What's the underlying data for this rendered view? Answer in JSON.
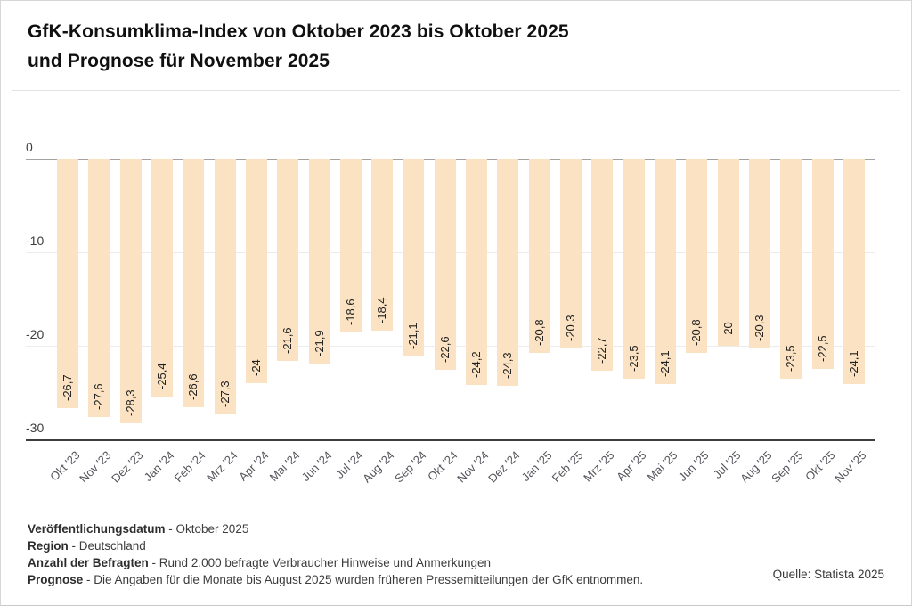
{
  "header": {
    "title_line1": "GfK-Konsumklima-Index von Oktober 2023 bis Oktober 2025",
    "title_line2": "und Prognose für November 2025"
  },
  "chart_data": {
    "type": "bar",
    "title": "GfK-Konsumklima-Index von Oktober 2023 bis Oktober 2025 und Prognose für November 2025",
    "categories": [
      "Okt '23",
      "Nov '23",
      "Dez '23",
      "Jan '24",
      "Feb '24",
      "Mrz '24",
      "Apr '24",
      "Mai '24",
      "Jun '24",
      "Jul '24",
      "Aug '24",
      "Sep '24",
      "Okt '24",
      "Nov '24",
      "Dez '24",
      "Jan '25",
      "Feb '25",
      "Mrz '25",
      "Apr '25",
      "Mai '25",
      "Jun '25",
      "Jul '25",
      "Aug '25",
      "Sep '25",
      "Okt '25",
      "Nov '25"
    ],
    "values": [
      -26.7,
      -27.6,
      -28.3,
      -25.4,
      -26.6,
      -27.3,
      -24,
      -21.6,
      -21.9,
      -18.6,
      -18.4,
      -21.1,
      -22.6,
      -24.2,
      -24.3,
      -20.8,
      -20.3,
      -22.7,
      -23.5,
      -24.1,
      -20.8,
      -20,
      -20.3,
      -23.5,
      -22.5,
      -24.1
    ],
    "value_labels": [
      "-26,7",
      "-27,6",
      "-28,3",
      "-25,4",
      "-26,6",
      "-27,3",
      "-24",
      "-21,6",
      "-21,9",
      "-18,6",
      "-18,4",
      "-21,1",
      "-22,6",
      "-24,2",
      "-24,3",
      "-20,8",
      "-20,3",
      "-22,7",
      "-23,5",
      "-24,1",
      "-20,8",
      "-20",
      "-20,3",
      "-23,5",
      "-22,5",
      "-24,1"
    ],
    "xlabel": "",
    "ylabel": "",
    "ylim": [
      -30,
      0
    ],
    "yticks": [
      0,
      -10,
      -20,
      -30
    ],
    "ytick_labels": [
      "0",
      "-10",
      "-20",
      "-30"
    ],
    "grid": true,
    "legend": false,
    "bar_color": "#fae2c2"
  },
  "footer": {
    "lines": [
      {
        "label": "Veröffentlichungsdatum",
        "text": "- Oktober 2025"
      },
      {
        "label": "Region",
        "text": "- Deutschland"
      },
      {
        "label": "Anzahl der Befragten",
        "text": "- Rund 2.000 befragte Verbraucher Hinweise und Anmerkungen"
      },
      {
        "label": "Prognose",
        "text": "- Die Angaben für die Monate bis August 2025 wurden früheren Pressemitteilungen der GfK entnommen."
      }
    ],
    "source": "Quelle: Statista 2025"
  }
}
